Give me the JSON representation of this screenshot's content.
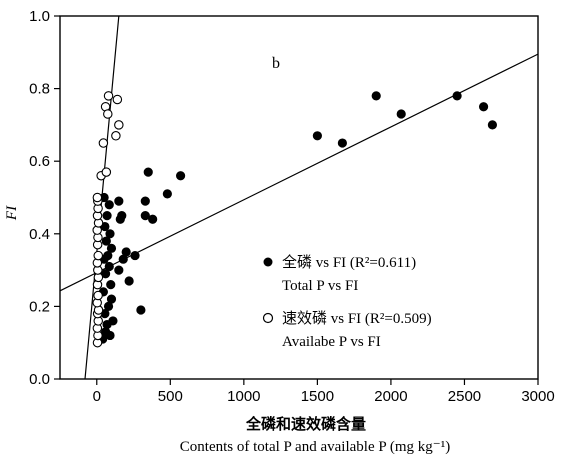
{
  "chart_data": {
    "type": "scatter",
    "panel_label": "b",
    "ylabel": "FI",
    "xlabel_cn": "全磷和速效磷含量",
    "xlabel_en": "Contents of total P and available P (mg kg⁻¹)",
    "xlim": [
      -250,
      3000
    ],
    "ylim": [
      0.0,
      1.0
    ],
    "x_ticks": [
      0,
      500,
      1000,
      1500,
      2000,
      2500,
      3000
    ],
    "y_ticks": [
      0.0,
      0.2,
      0.4,
      0.6,
      0.8,
      1.0
    ],
    "y_tick_labels": [
      "0.0",
      "0.2",
      "0.4",
      "0.6",
      "0.8",
      "1.0"
    ],
    "legend_position": "center-right",
    "series": [
      {
        "marker": "filled-circle",
        "legend_cn": "全磷 vs FI (R²=0.611)",
        "legend_en": "Total P vs FI",
        "fit_line": {
          "x1": -250,
          "y1": 0.243,
          "x2": 3000,
          "y2": 0.895
        },
        "points": [
          [
            40,
            0.11
          ],
          [
            60,
            0.13
          ],
          [
            90,
            0.12
          ],
          [
            110,
            0.16
          ],
          [
            70,
            0.15
          ],
          [
            55,
            0.18
          ],
          [
            80,
            0.2
          ],
          [
            100,
            0.22
          ],
          [
            45,
            0.24
          ],
          [
            95,
            0.26
          ],
          [
            60,
            0.29
          ],
          [
            85,
            0.31
          ],
          [
            50,
            0.33
          ],
          [
            75,
            0.34
          ],
          [
            100,
            0.36
          ],
          [
            65,
            0.38
          ],
          [
            90,
            0.4
          ],
          [
            55,
            0.42
          ],
          [
            70,
            0.45
          ],
          [
            85,
            0.48
          ],
          [
            50,
            0.5
          ],
          [
            150,
            0.3
          ],
          [
            180,
            0.33
          ],
          [
            200,
            0.35
          ],
          [
            160,
            0.44
          ],
          [
            170,
            0.45
          ],
          [
            150,
            0.49
          ],
          [
            220,
            0.27
          ],
          [
            260,
            0.34
          ],
          [
            300,
            0.19
          ],
          [
            330,
            0.45
          ],
          [
            330,
            0.49
          ],
          [
            350,
            0.57
          ],
          [
            380,
            0.44
          ],
          [
            480,
            0.51
          ],
          [
            570,
            0.56
          ],
          [
            1500,
            0.67
          ],
          [
            1670,
            0.65
          ],
          [
            1900,
            0.78
          ],
          [
            2070,
            0.73
          ],
          [
            2450,
            0.78
          ],
          [
            2630,
            0.75
          ],
          [
            2690,
            0.7
          ]
        ]
      },
      {
        "marker": "open-circle",
        "legend_cn": "速效磷 vs FI (R²=0.509)",
        "legend_en": "Availabe P vs FI",
        "fit_line": {
          "x1": -80,
          "y1": 0.0,
          "x2": 150,
          "y2": 1.0
        },
        "points": [
          [
            5,
            0.1
          ],
          [
            8,
            0.12
          ],
          [
            4,
            0.14
          ],
          [
            10,
            0.16
          ],
          [
            6,
            0.18
          ],
          [
            12,
            0.19
          ],
          [
            3,
            0.21
          ],
          [
            9,
            0.23
          ],
          [
            5,
            0.26
          ],
          [
            11,
            0.28
          ],
          [
            7,
            0.3
          ],
          [
            4,
            0.32
          ],
          [
            10,
            0.34
          ],
          [
            6,
            0.37
          ],
          [
            8,
            0.39
          ],
          [
            3,
            0.41
          ],
          [
            12,
            0.43
          ],
          [
            5,
            0.45
          ],
          [
            9,
            0.47
          ],
          [
            7,
            0.49
          ],
          [
            4,
            0.5
          ],
          [
            30,
            0.56
          ],
          [
            65,
            0.57
          ],
          [
            45,
            0.65
          ],
          [
            60,
            0.75
          ],
          [
            75,
            0.73
          ],
          [
            80,
            0.78
          ],
          [
            130,
            0.67
          ],
          [
            150,
            0.7
          ],
          [
            140,
            0.77
          ]
        ]
      }
    ]
  }
}
